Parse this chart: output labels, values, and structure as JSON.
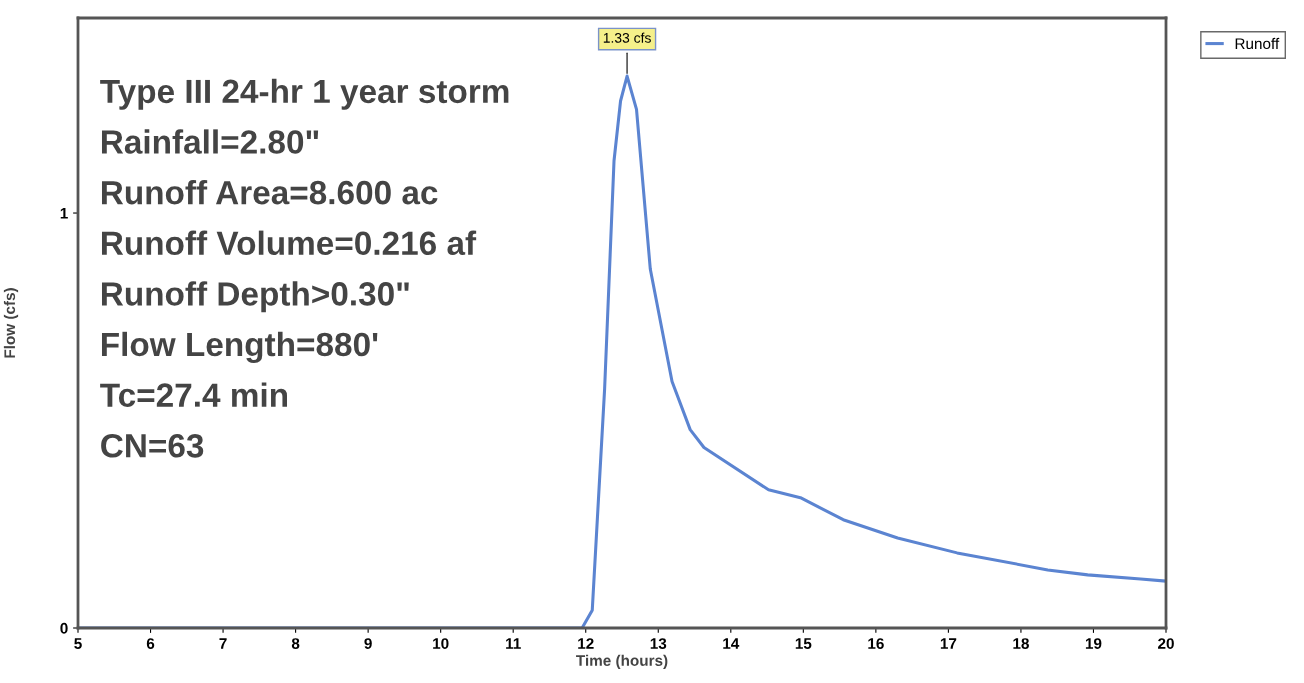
{
  "chart_data": {
    "type": "line",
    "xlabel": "Time (hours)",
    "ylabel": "Flow (cfs)",
    "xlim": [
      5,
      20
    ],
    "ylim": [
      0,
      1.47
    ],
    "xticks": [
      5,
      6,
      7,
      8,
      9,
      10,
      11,
      12,
      13,
      14,
      15,
      16,
      17,
      18,
      19,
      20
    ],
    "yticks": [
      0,
      1
    ],
    "grid": false,
    "legend": "top right",
    "marker": "none",
    "line_style": "solid",
    "series": [
      {
        "name": "Runoff",
        "color": "#5b84d1",
        "x": [
          5,
          11.95,
          12.09,
          12.26,
          12.39,
          12.48,
          12.57,
          12.7,
          12.89,
          13.19,
          13.44,
          13.63,
          14.52,
          14.96,
          15.55,
          16.3,
          17.12,
          18.37,
          18.92,
          19.65,
          20
        ],
        "values": [
          0,
          0,
          0.043,
          0.575,
          1.126,
          1.27,
          1.33,
          1.25,
          0.865,
          0.594,
          0.478,
          0.435,
          0.333,
          0.314,
          0.261,
          0.217,
          0.181,
          0.14,
          0.128,
          0.118,
          0.113
        ]
      }
    ],
    "annotations": [
      {
        "text": "1.33 cfs",
        "x": 12.57,
        "y": 1.33
      },
      "Type III 24-hr 1 year storm",
      "Rainfall=2.80\"",
      "Runoff Area=8.600 ac",
      "Runoff Volume=0.216 af",
      "Runoff Depth>0.30\"",
      "Flow Length=880'",
      "Tc=27.4 min",
      "CN=63"
    ]
  }
}
